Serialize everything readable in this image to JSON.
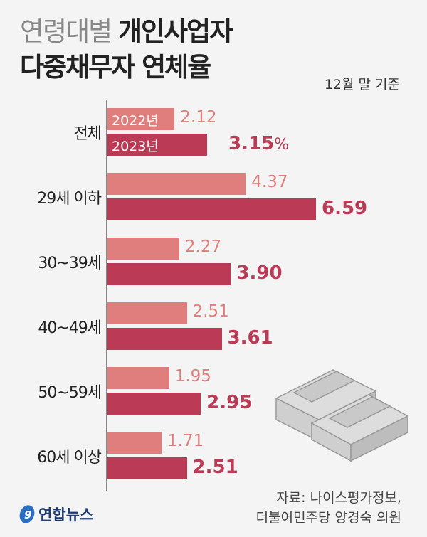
{
  "title": {
    "line1_light": "연령대별",
    "line1_bold": "개인사업자",
    "line2": "다중채무자 연체율"
  },
  "basis": "12월 말 기준",
  "chart_data": {
    "type": "bar",
    "orientation": "horizontal",
    "unit": "%",
    "categories": [
      "전체",
      "29세 이하",
      "30~39세",
      "40~49세",
      "50~59세",
      "60세 이상"
    ],
    "series": [
      {
        "name": "2022년",
        "color": "#e07e7e",
        "values": [
          2.12,
          4.37,
          2.27,
          2.51,
          1.95,
          1.71
        ],
        "labels": [
          "2.12",
          "4.37",
          "2.27",
          "2.51",
          "1.95",
          "1.71"
        ]
      },
      {
        "name": "2023년",
        "color": "#bb3a56",
        "values": [
          3.15,
          6.59,
          3.9,
          3.61,
          2.95,
          2.51
        ],
        "labels": [
          "3.15",
          "6.59",
          "3.90",
          "3.61",
          "2.95",
          "2.51"
        ]
      }
    ],
    "pct_symbol": "%",
    "xlim": [
      0,
      6.59
    ]
  },
  "source": {
    "line1": "자료: 나이스평가정보,",
    "line2": "더불어민주당 양경숙 의원"
  },
  "logo": "연합뉴스"
}
